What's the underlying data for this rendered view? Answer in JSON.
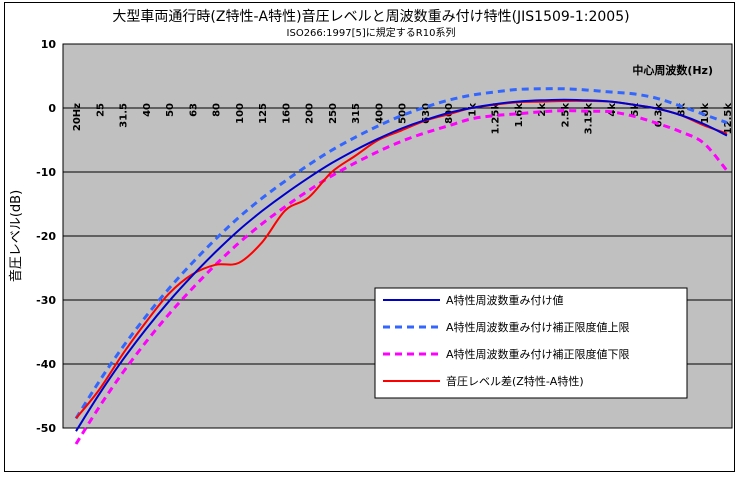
{
  "chart_data": {
    "type": "line",
    "title": "大型車両通行時(Z特性-A特性)音圧レベルと周波数重み付け特性(JIS1509-1:2005)",
    "subtitle": "ISO266:1997[5]に規定するR10系列",
    "ylabel": "音圧レベル(dB)",
    "xlabel": "中心周波数(Hz)",
    "ylim": [
      -50,
      10
    ],
    "yticks": [
      10,
      0,
      -10,
      -20,
      -30,
      -40,
      -50
    ],
    "grid": true,
    "legend_position": "bottom-right",
    "categories": [
      "20Hz",
      "25",
      "31.5",
      "40",
      "50",
      "63",
      "80",
      "100",
      "125",
      "160",
      "200",
      "250",
      "315",
      "400",
      "500",
      "630",
      "800",
      "1k",
      "1.25k",
      "1.6k",
      "2k",
      "2.5k",
      "3.15k",
      "4k",
      "5k",
      "6.3k",
      "8k",
      "10k",
      "12.5k"
    ],
    "series": [
      {
        "name": "A特性周波数重み付け値",
        "color": "#0000cc",
        "style": "solid",
        "values": [
          -50.5,
          -44.7,
          -39.4,
          -34.6,
          -30.2,
          -26.2,
          -22.5,
          -19.1,
          -16.1,
          -13.4,
          -10.9,
          -8.6,
          -6.6,
          -4.8,
          -3.2,
          -1.9,
          -0.8,
          0.0,
          0.6,
          1.0,
          1.2,
          1.3,
          1.2,
          1.0,
          0.5,
          -0.1,
          -1.1,
          -2.5,
          -4.3
        ]
      },
      {
        "name": "A特性周波数重み付け補正限度値上限",
        "color": "#3366ff",
        "style": "dashed",
        "values": [
          -48.5,
          -42.7,
          -37.4,
          -32.6,
          -28.2,
          -24.2,
          -20.5,
          -17.1,
          -14.1,
          -11.4,
          -8.9,
          -6.6,
          -4.6,
          -2.8,
          -1.2,
          0.1,
          1.2,
          2.0,
          2.5,
          2.9,
          3.0,
          3.0,
          2.8,
          2.5,
          2.2,
          1.5,
          0.3,
          -1.0,
          -2.3
        ]
      },
      {
        "name": "A特性周波数重み付け補正限度値下限",
        "color": "#ff00ff",
        "style": "dashed",
        "values": [
          -52.5,
          -46.7,
          -41.4,
          -36.6,
          -32.2,
          -28.2,
          -24.5,
          -21.1,
          -18.1,
          -15.4,
          -12.9,
          -10.6,
          -8.6,
          -6.8,
          -5.2,
          -3.9,
          -2.8,
          -1.7,
          -1.2,
          -0.9,
          -0.6,
          -0.4,
          -0.5,
          -0.6,
          -1.3,
          -2.4,
          -3.7,
          -5.5,
          -9.8
        ]
      },
      {
        "name": "音圧レベル差(Z特性-A特性)",
        "color": "#ff0000",
        "style": "solid",
        "values": [
          -48.5,
          -44.0,
          -38.5,
          -33.5,
          -29.0,
          -26.0,
          -24.5,
          -24.2,
          -21.0,
          -16.0,
          -14.0,
          -10.0,
          -7.5,
          -5.0,
          -3.5,
          -2.0,
          -1.0,
          0.0,
          0.5,
          0.9,
          1.0,
          1.1,
          1.1,
          1.0,
          0.5,
          -0.1,
          -1.1,
          -2.7,
          -4.0
        ]
      }
    ]
  }
}
